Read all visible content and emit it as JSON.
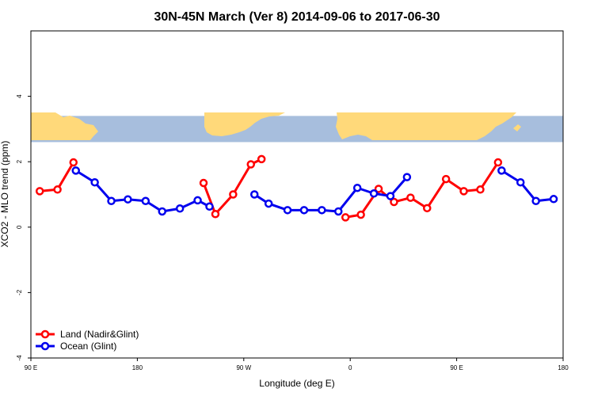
{
  "chart_data": {
    "type": "line",
    "title": "30N-45N March (Ver 8)   2014-09-06 to 2017-06-30",
    "xlabel": "Longitude (deg E)",
    "ylabel": "XCO2 - MLO trend (ppm)",
    "xlim": [
      90,
      540
    ],
    "ylim": [
      -4,
      6
    ],
    "x_ticks": [
      {
        "value": 90,
        "label": "90 E"
      },
      {
        "value": 180,
        "label": "180"
      },
      {
        "value": 270,
        "label": "90 W"
      },
      {
        "value": 360,
        "label": "0"
      },
      {
        "value": 450,
        "label": "90 E"
      },
      {
        "value": 540,
        "label": "180"
      }
    ],
    "y_ticks": [
      {
        "value": -4,
        "label": "-4"
      },
      {
        "value": -2,
        "label": "-2"
      },
      {
        "value": 0,
        "label": "0"
      },
      {
        "value": 2,
        "label": "2"
      },
      {
        "value": 4,
        "label": "4"
      }
    ],
    "map_band": {
      "y_top": 3.4,
      "y_bottom": 2.6,
      "ocean_color": "#a7bedd",
      "land_color": "#ffd97a"
    },
    "legend_position": "bottom-left",
    "series": [
      {
        "name": "Land (Nadir&Glint)",
        "color": "#ff0000",
        "segments": [
          [
            [
              97.5,
              1.1
            ],
            [
              112.5,
              1.15
            ],
            [
              126,
              1.98
            ]
          ],
          [
            [
              236,
              1.35
            ],
            [
              246,
              0.4
            ],
            [
              261,
              1.0
            ],
            [
              276,
              1.92
            ],
            [
              285,
              2.08
            ]
          ],
          [
            [
              356,
              0.3
            ],
            [
              369,
              0.38
            ],
            [
              384,
              1.17
            ],
            [
              397,
              0.77
            ],
            [
              411,
              0.9
            ],
            [
              425,
              0.58
            ],
            [
              441,
              1.47
            ],
            [
              456,
              1.1
            ],
            [
              470,
              1.15
            ],
            [
              485,
              1.98
            ]
          ]
        ]
      },
      {
        "name": "Ocean (Glint)",
        "color": "#0000ee",
        "segments": [
          [
            [
              128,
              1.73
            ],
            [
              144,
              1.37
            ],
            [
              158,
              0.8
            ],
            [
              172,
              0.85
            ],
            [
              187,
              0.8
            ],
            [
              201,
              0.48
            ],
            [
              216,
              0.57
            ],
            [
              231,
              0.82
            ],
            [
              241,
              0.63
            ]
          ],
          [
            [
              279,
              1.0
            ],
            [
              291,
              0.72
            ],
            [
              307,
              0.52
            ],
            [
              321,
              0.52
            ],
            [
              336,
              0.52
            ],
            [
              350,
              0.48
            ],
            [
              366,
              1.2
            ],
            [
              380,
              1.03
            ],
            [
              394,
              0.95
            ],
            [
              408,
              1.53
            ]
          ],
          [
            [
              488,
              1.73
            ],
            [
              504,
              1.37
            ],
            [
              517,
              0.8
            ],
            [
              532,
              0.86
            ]
          ]
        ]
      }
    ]
  }
}
